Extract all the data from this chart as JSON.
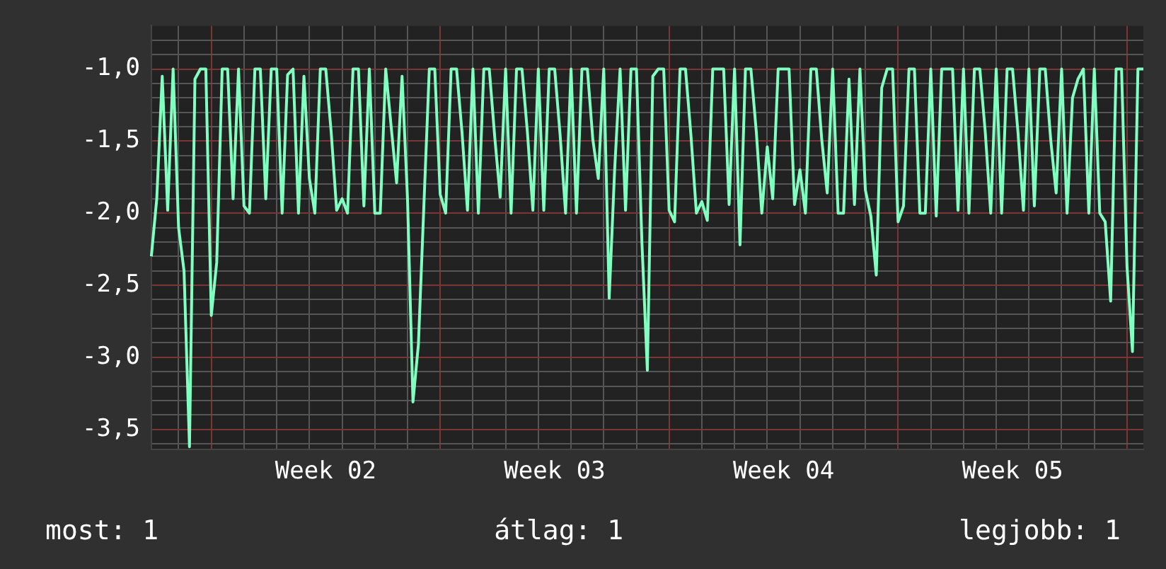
{
  "chart_data": {
    "type": "line",
    "categories": [
      null,
      null,
      null,
      null,
      null,
      null,
      null,
      null,
      null,
      null,
      null,
      null,
      null,
      null,
      null,
      null,
      null,
      null,
      null,
      null,
      null,
      null,
      null,
      null,
      null,
      null,
      null,
      null,
      null,
      null,
      null,
      null,
      "Week 02",
      null,
      null,
      null,
      null,
      null,
      null,
      null,
      null,
      null,
      null,
      null,
      null,
      null,
      null,
      null,
      null,
      null,
      null,
      null,
      null,
      null,
      null,
      null,
      null,
      null,
      null,
      null,
      null,
      null,
      null,
      null,
      null,
      null,
      null,
      null,
      null,
      null,
      null,
      null,
      null,
      null,
      "Week 03",
      null,
      null,
      null,
      null,
      null,
      null,
      null,
      null,
      null,
      null,
      null,
      null,
      null,
      null,
      null,
      null,
      null,
      null,
      null,
      null,
      null,
      null,
      null,
      null,
      null,
      null,
      null,
      null,
      null,
      null,
      null,
      null,
      null,
      null,
      null,
      null,
      null,
      null,
      null,
      null,
      null,
      "Week 04",
      null,
      null,
      null,
      null,
      null,
      null,
      null,
      null,
      null,
      null,
      null,
      null,
      null,
      null,
      null,
      null,
      null,
      null,
      null,
      null,
      null,
      null,
      null,
      null,
      null,
      null,
      null,
      null,
      null,
      null,
      null,
      null,
      null,
      null,
      null,
      null,
      null,
      null,
      null,
      null,
      null,
      "Week 05",
      null,
      null,
      null,
      null,
      null,
      null,
      null,
      null,
      null,
      null,
      null,
      null,
      null,
      null,
      null,
      null,
      null,
      null,
      null,
      null,
      null,
      null,
      null,
      null
    ],
    "series": [
      {
        "color": "#80ffc0",
        "values": [
          -2.3,
          -1.9,
          -1.05,
          -1.98,
          -1.0,
          -2.1,
          -2.4,
          -3.62,
          -1.07,
          -1.0,
          -1.0,
          -2.71,
          -2.34,
          -1.0,
          -1.0,
          -1.9,
          -1.0,
          -1.95,
          -2.0,
          -1.0,
          -1.0,
          -1.9,
          -1.0,
          -1.0,
          -2.0,
          -1.04,
          -1.0,
          -2.0,
          -1.05,
          -1.76,
          -2.0,
          -1.0,
          -1.0,
          -1.44,
          -1.98,
          -1.9,
          -2.0,
          -1.0,
          -1.0,
          -1.95,
          -1.0,
          -2.0,
          -2.0,
          -1.0,
          -1.4,
          -1.79,
          -1.05,
          -1.9,
          -3.31,
          -2.91,
          -1.95,
          -1.0,
          -1.0,
          -1.87,
          -2.0,
          -1.0,
          -1.0,
          -1.44,
          -1.98,
          -1.0,
          -2.0,
          -1.0,
          -1.0,
          -1.47,
          -1.89,
          -1.0,
          -2.0,
          -1.0,
          -1.0,
          -1.44,
          -1.98,
          -1.0,
          -1.98,
          -1.0,
          -1.0,
          -1.46,
          -2.0,
          -1.0,
          -2.0,
          -1.0,
          -1.0,
          -1.49,
          -1.76,
          -1.0,
          -2.59,
          -1.7,
          -1.0,
          -1.98,
          -1.0,
          -1.0,
          -2.2,
          -3.09,
          -1.05,
          -1.0,
          -1.0,
          -1.98,
          -2.06,
          -1.0,
          -1.0,
          -1.46,
          -2.0,
          -1.92,
          -2.05,
          -1.0,
          -1.0,
          -1.0,
          -1.94,
          -1.0,
          -2.22,
          -1.0,
          -1.0,
          -1.44,
          -2.0,
          -1.54,
          -1.9,
          -1.0,
          -1.0,
          -1.0,
          -1.94,
          -1.7,
          -2.0,
          -1.0,
          -1.0,
          -1.49,
          -1.86,
          -1.0,
          -2.0,
          -2.0,
          -1.07,
          -1.94,
          -1.0,
          -1.84,
          -2.02,
          -2.43,
          -1.13,
          -1.0,
          -1.0,
          -2.06,
          -1.95,
          -1.0,
          -1.0,
          -2.0,
          -2.0,
          -1.0,
          -2.02,
          -1.0,
          -1.0,
          -1.0,
          -1.98,
          -1.0,
          -2.0,
          -1.0,
          -1.0,
          -1.44,
          -2.0,
          -1.0,
          -2.0,
          -1.0,
          -1.0,
          -1.44,
          -1.98,
          -1.0,
          -1.95,
          -1.0,
          -1.0,
          -1.49,
          -1.86,
          -1.0,
          -2.0,
          -1.2,
          -1.07,
          -1.0,
          -2.0,
          -1.0,
          -2.0,
          -2.06,
          -2.61,
          -1.0,
          -1.0,
          -2.37,
          -2.96,
          -1.0,
          -1.0
        ]
      }
    ],
    "ylim": [
      -3.64,
      -0.7
    ],
    "yticks": [
      {
        "value": -3.6,
        "label": null
      },
      {
        "value": -3.5,
        "label": "-3,5"
      },
      {
        "value": -3.4,
        "label": null
      },
      {
        "value": -3.3,
        "label": null
      },
      {
        "value": -3.2,
        "label": null
      },
      {
        "value": -3.1,
        "label": null
      },
      {
        "value": -3.0,
        "label": "-3,0"
      },
      {
        "value": -2.9,
        "label": null
      },
      {
        "value": -2.8,
        "label": null
      },
      {
        "value": -2.7,
        "label": null
      },
      {
        "value": -2.6,
        "label": null
      },
      {
        "value": -2.5,
        "label": "-2,5"
      },
      {
        "value": -2.4,
        "label": null
      },
      {
        "value": -2.3,
        "label": null
      },
      {
        "value": -2.2,
        "label": null
      },
      {
        "value": -2.1,
        "label": null
      },
      {
        "value": -2.0,
        "label": "-2,0"
      },
      {
        "value": -1.9,
        "label": null
      },
      {
        "value": -1.8,
        "label": null
      },
      {
        "value": -1.7,
        "label": null
      },
      {
        "value": -1.6,
        "label": null
      },
      {
        "value": -1.5,
        "label": "-1,5"
      },
      {
        "value": -1.4,
        "label": null
      },
      {
        "value": -1.3,
        "label": null
      },
      {
        "value": -1.2,
        "label": null
      },
      {
        "value": -1.1,
        "label": null
      },
      {
        "value": -1.0,
        "label": "-1,0"
      },
      {
        "value": -0.9,
        "label": null
      },
      {
        "value": -0.8,
        "label": null
      }
    ],
    "grid": true,
    "marker": "none",
    "line_style": "solid",
    "annotations": [
      "most: 1",
      "átlag: 1",
      "legjobb: 1"
    ]
  }
}
